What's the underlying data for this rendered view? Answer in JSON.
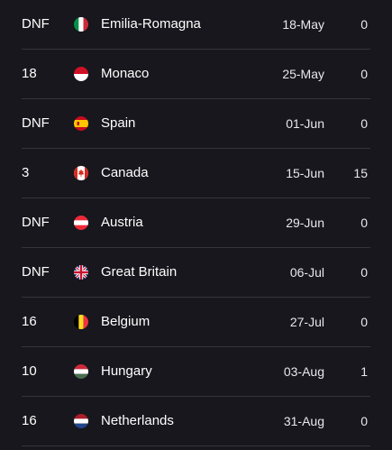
{
  "results": [
    {
      "position": "DNF",
      "race": "Emilia-Romagna",
      "date": "18-May",
      "points": "0",
      "flag_icon": "italy-flag-icon"
    },
    {
      "position": "18",
      "race": "Monaco",
      "date": "25-May",
      "points": "0",
      "flag_icon": "monaco-flag-icon"
    },
    {
      "position": "DNF",
      "race": "Spain",
      "date": "01-Jun",
      "points": "0",
      "flag_icon": "spain-flag-icon"
    },
    {
      "position": "3",
      "race": "Canada",
      "date": "15-Jun",
      "points": "15",
      "flag_icon": "canada-flag-icon"
    },
    {
      "position": "DNF",
      "race": "Austria",
      "date": "29-Jun",
      "points": "0",
      "flag_icon": "austria-flag-icon"
    },
    {
      "position": "DNF",
      "race": "Great Britain",
      "date": "06-Jul",
      "points": "0",
      "flag_icon": "uk-flag-icon"
    },
    {
      "position": "16",
      "race": "Belgium",
      "date": "27-Jul",
      "points": "0",
      "flag_icon": "belgium-flag-icon"
    },
    {
      "position": "10",
      "race": "Hungary",
      "date": "03-Aug",
      "points": "1",
      "flag_icon": "hungary-flag-icon"
    },
    {
      "position": "16",
      "race": "Netherlands",
      "date": "31-Aug",
      "points": "0",
      "flag_icon": "netherlands-flag-icon"
    }
  ],
  "colors": {
    "background": "#17171d",
    "divider": "#34343c",
    "text": "#ffffff"
  }
}
